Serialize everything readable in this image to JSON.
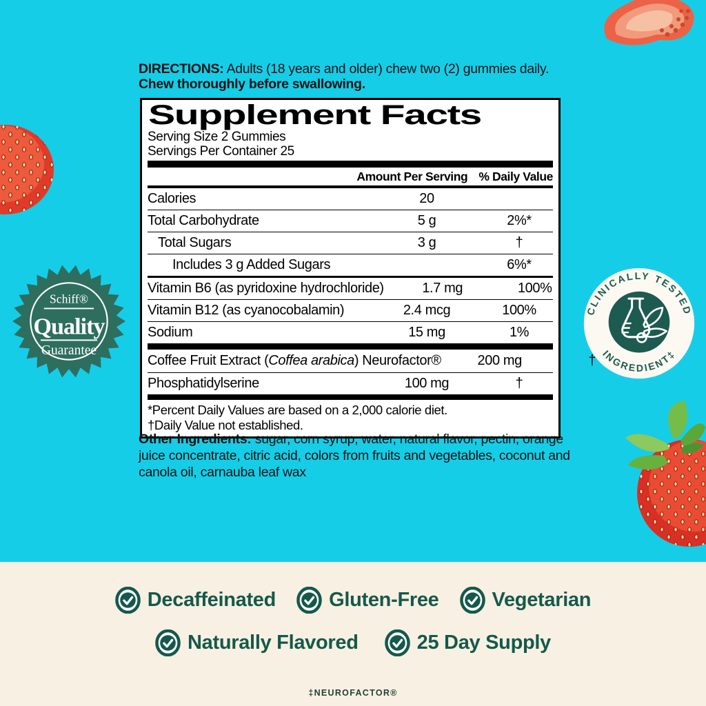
{
  "colors": {
    "bg_cyan": "#16cde7",
    "bg_cream": "#f8f0e2",
    "seal_green": "#2e6e5f",
    "badge_teal": "#1d5a50",
    "claims_teal": "#14594b"
  },
  "directions": {
    "label": "DIRECTIONS:",
    "body": " Adults (18 years and older) chew two (2) gummies daily. ",
    "bold_tail": "Chew thoroughly before swallowing."
  },
  "panel": {
    "title": "Supplement Facts",
    "serving_size": "Serving Size 2 Gummies",
    "servings_per_container": "Servings Per Container 25",
    "columns": {
      "amount": "Amount Per Serving",
      "dv": "% Daily Value"
    },
    "rows": [
      {
        "name": "Calories",
        "amount": "20",
        "dv": ""
      },
      {
        "name": "Total Carbohydrate",
        "amount": "5 g",
        "dv": "2%*"
      },
      {
        "name": "Total Sugars",
        "amount": "3 g",
        "dv": "†"
      },
      {
        "name": "Includes 3 g Added Sugars",
        "amount": "",
        "dv": "6%*"
      },
      {
        "name": "Vitamin B6 (as pyridoxine hydrochloride)",
        "amount": "1.7 mg",
        "dv": "100%"
      },
      {
        "name": "Vitamin B12 (as cyanocobalamin)",
        "amount": "2.4 mcg",
        "dv": "100%"
      },
      {
        "name": "Sodium",
        "amount": "15 mg",
        "dv": "1%"
      }
    ],
    "extra_rows": [
      {
        "name_pre": "Coffee Fruit Extract (",
        "name_italic": "Coffea arabica",
        "name_post": ") Neurofactor®",
        "amount": "200 mg",
        "dv": "†"
      },
      {
        "name_pre": "Phosphatidylserine",
        "name_italic": "",
        "name_post": "",
        "amount": "100 mg",
        "dv": "†"
      }
    ],
    "footnote1": "*Percent Daily Values are based on a 2,000 calorie diet.",
    "footnote2": "†Daily Value not established."
  },
  "other_ingredients": {
    "label": "Other Ingredients:",
    "text": " sugar, corn syrup, water, natural flavor, pectin, orange juice concentrate, citric acid, colors from fruits and vegetables, coconut and canola oil, carnauba leaf wax"
  },
  "quality_seal": {
    "brand": "Schiff®",
    "word": "Quality",
    "sub": "Guarantee"
  },
  "clinical_badge": {
    "arc_top": "CLINICALLY TESTED",
    "arc_bottom": "INGREDIENT‡"
  },
  "claims": {
    "row1": [
      "Decaffeinated",
      "Gluten-Free",
      "Vegetarian"
    ],
    "row2": [
      "Naturally Flavored",
      "25 Day Supply"
    ]
  },
  "footer": {
    "trademark": "‡NEUROFACTOR®"
  }
}
